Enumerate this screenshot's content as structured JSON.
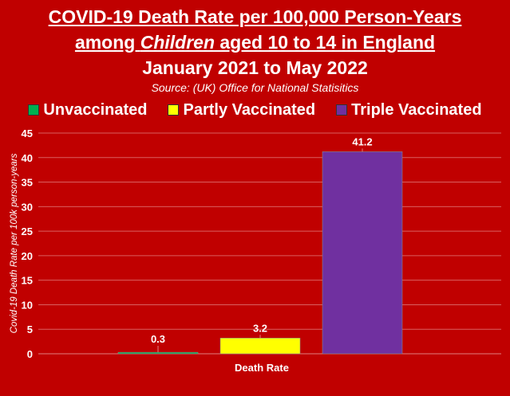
{
  "title_line1": "COVID-19 Death Rate per 100,000 Person-Years",
  "title_line2_pre": "among ",
  "title_line2_em": "Children",
  "title_line2_post": " aged 10 to 14 in England",
  "subtitle": "January 2021 to May 2022",
  "source": "Source: (UK) Office for National Statisitics",
  "chart_data": {
    "type": "bar",
    "categories": [
      "Death Rate"
    ],
    "series": [
      {
        "name": "Unvaccinated",
        "values": [
          0.3
        ],
        "color": "#00b050"
      },
      {
        "name": "Partly Vaccinated",
        "values": [
          3.2
        ],
        "color": "#ffff00"
      },
      {
        "name": "Triple Vaccinated",
        "values": [
          41.2
        ],
        "color": "#7030a0"
      }
    ],
    "data_labels": [
      "0.3",
      "3.2",
      "41.2"
    ],
    "xlabel": "Death Rate",
    "ylabel": "Covid-19 Death Rate per 100k person-years",
    "ylim": [
      0,
      45
    ],
    "yticks": [
      0,
      5,
      10,
      15,
      20,
      25,
      30,
      35,
      40,
      45
    ],
    "grid": true,
    "legend_position": "top"
  }
}
